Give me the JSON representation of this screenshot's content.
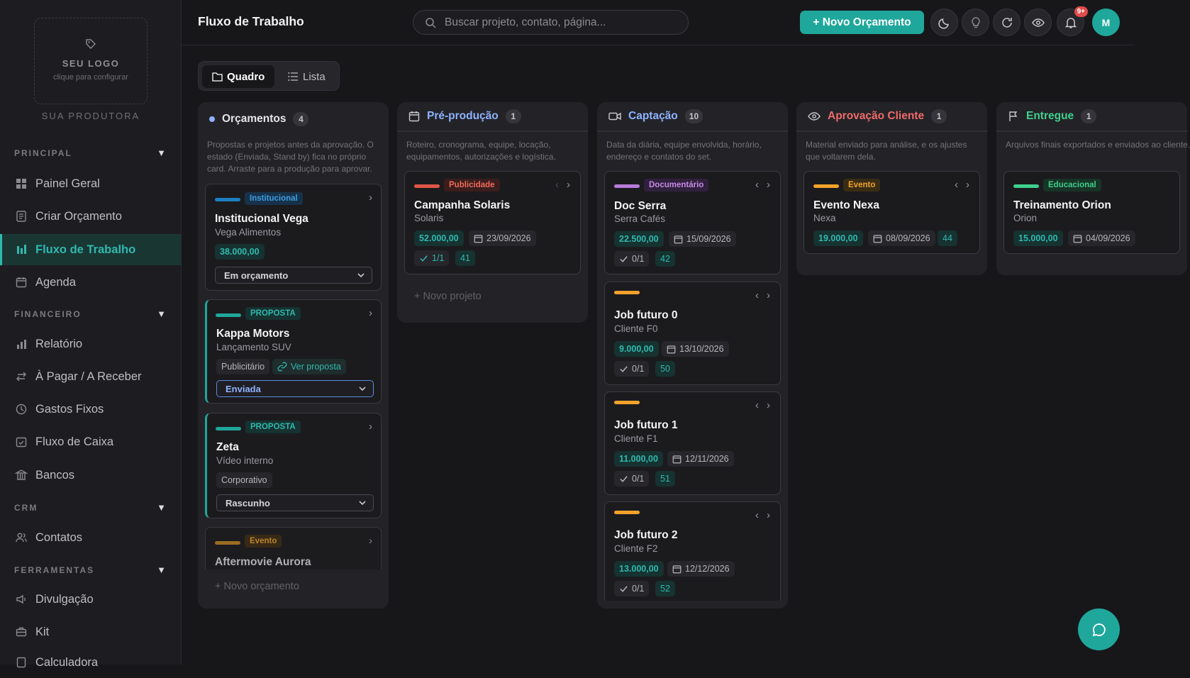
{
  "sidebar": {
    "logo_title": "SEU LOGO",
    "logo_sub": "clique para configurar",
    "brand": "SUA PRODUTORA",
    "sections": {
      "principal": "PRINCIPAL",
      "financeiro": "FINANCEIRO",
      "crm": "CRM",
      "ferramentas": "FERRAMENTAS"
    },
    "items": {
      "painel": "Painel Geral",
      "criar": "Criar Orçamento",
      "fluxo": "Fluxo de Trabalho",
      "agenda": "Agenda",
      "relatorio": "Relatório",
      "pagar": "À Pagar / A Receber",
      "gastos": "Gastos Fixos",
      "caixa": "Fluxo de Caixa",
      "bancos": "Bancos",
      "contatos": "Contatos",
      "divulgacao": "Divulgação",
      "kit": "Kit",
      "calculadora": "Calculadora"
    }
  },
  "header": {
    "title": "Fluxo de Trabalho",
    "search_placeholder": "Buscar projeto, contato, página...",
    "new_button": "+ Novo Orçamento",
    "notif_badge": "9+",
    "avatar": "M"
  },
  "view": {
    "board": "Quadro",
    "list": "Lista"
  },
  "columns": {
    "orc": {
      "title": "Orçamentos",
      "count": "4",
      "desc": "Propostas e projetos antes da aprovação. O estado (Enviada, Stand by) fica no próprio card. Arraste para a produção para aprovar.",
      "add": "+ Novo orçamento",
      "cards": [
        {
          "tag": "Institucional",
          "title": "Institucional Vega",
          "sub": "Vega Alimentos",
          "value": "38.000,00",
          "status": "Em orçamento"
        },
        {
          "tag": "PROPOSTA",
          "title": "Kappa Motors",
          "sub": "Lançamento SUV",
          "chip": "Publicitário",
          "link": "Ver proposta",
          "status": "Enviada"
        },
        {
          "tag": "PROPOSTA",
          "title": "Zeta",
          "sub": "Vídeo interno",
          "chip": "Corporativo",
          "status": "Rascunho"
        },
        {
          "tag": "Evento",
          "title": "Aftermovie Aurora"
        }
      ]
    },
    "pre": {
      "title": "Pré-produção",
      "count": "1",
      "desc": "Roteiro, cronograma, equipe, locação, equipamentos, autorizações e logística.",
      "add": "+ Novo projeto",
      "cards": [
        {
          "tag": "Publicidade",
          "title": "Campanha Solaris",
          "sub": "Solaris",
          "value": "52.000,00",
          "date": "23/09/2026",
          "tasks": "1/1",
          "num": "41"
        }
      ]
    },
    "cap": {
      "title": "Captação",
      "count": "10",
      "desc": "Data da diária, equipe envolvida, horário, endereço e contatos do set.",
      "cards": [
        {
          "tag": "Documentário",
          "title": "Doc Serra",
          "sub": "Serra Cafés",
          "value": "22.500,00",
          "date": "15/09/2026",
          "tasks": "0/1",
          "num": "42"
        },
        {
          "title": "Job futuro 0",
          "sub": "Cliente F0",
          "value": "9.000,00",
          "date": "13/10/2026",
          "tasks": "0/1",
          "num": "50"
        },
        {
          "title": "Job futuro 1",
          "sub": "Cliente F1",
          "value": "11.000,00",
          "date": "12/11/2026",
          "tasks": "0/1",
          "num": "51"
        },
        {
          "title": "Job futuro 2",
          "sub": "Cliente F2",
          "value": "13.000,00",
          "date": "12/12/2026",
          "tasks": "0/1",
          "num": "52"
        }
      ]
    },
    "apr": {
      "title": "Aprovação Cliente",
      "count": "1",
      "desc": "Material enviado para análise, e os ajustes que voltarem dela.",
      "cards": [
        {
          "tag": "Evento",
          "title": "Evento Nexa",
          "sub": "Nexa",
          "value": "19.000,00",
          "date": "08/09/2026",
          "num": "44"
        }
      ]
    },
    "ent": {
      "title": "Entregue",
      "count": "1",
      "desc": "Arquivos finais exportados e enviados ao cliente.",
      "cards": [
        {
          "tag": "Educacional",
          "title": "Treinamento Orion",
          "sub": "Orion",
          "value": "15.000,00",
          "date": "04/09/2026"
        }
      ]
    }
  },
  "colors": {
    "accent": "#1fa79b",
    "danger": "#e04b4b",
    "pre": "#8fb2ff",
    "cap": "#8fb2ff",
    "apr": "#ef6b6b",
    "ent": "#3fcf8e"
  }
}
